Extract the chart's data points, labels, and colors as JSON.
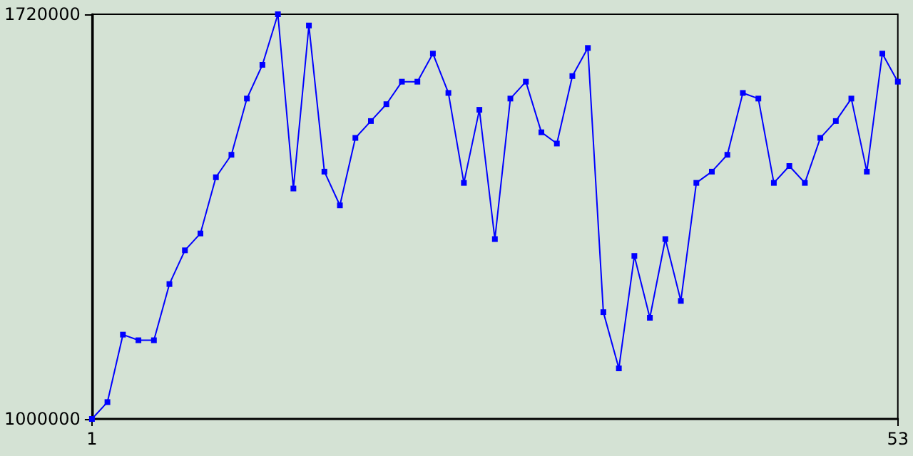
{
  "chart_data": {
    "type": "line",
    "color": "#0000ff",
    "marker": "square",
    "grid": false,
    "x": [
      1,
      2,
      3,
      4,
      5,
      6,
      7,
      8,
      9,
      10,
      11,
      12,
      13,
      14,
      15,
      16,
      17,
      18,
      19,
      20,
      21,
      22,
      23,
      24,
      25,
      26,
      27,
      28,
      29,
      30,
      31,
      32,
      33,
      34,
      35,
      36,
      37,
      38,
      39,
      40,
      41,
      42,
      43,
      44,
      45,
      46,
      47,
      48,
      49,
      50,
      51,
      52,
      53
    ],
    "values": [
      1000000,
      1030000,
      1150000,
      1140000,
      1140000,
      1240000,
      1300000,
      1330000,
      1430000,
      1470000,
      1570000,
      1630000,
      1720000,
      1410000,
      1700000,
      1440000,
      1380000,
      1500000,
      1530000,
      1560000,
      1600000,
      1600000,
      1650000,
      1580000,
      1420000,
      1550000,
      1320000,
      1570000,
      1600000,
      1510000,
      1490000,
      1610000,
      1660000,
      1190000,
      1090000,
      1290000,
      1180000,
      1320000,
      1210000,
      1420000,
      1440000,
      1470000,
      1580000,
      1570000,
      1420000,
      1450000,
      1420000,
      1500000,
      1530000,
      1570000,
      1440000,
      1650000,
      1600000
    ],
    "xlim": [
      1,
      53
    ],
    "xticks": [
      1,
      53
    ],
    "ylim": [
      1000000,
      1720000
    ],
    "yticks": [
      1000000,
      1720000
    ]
  }
}
